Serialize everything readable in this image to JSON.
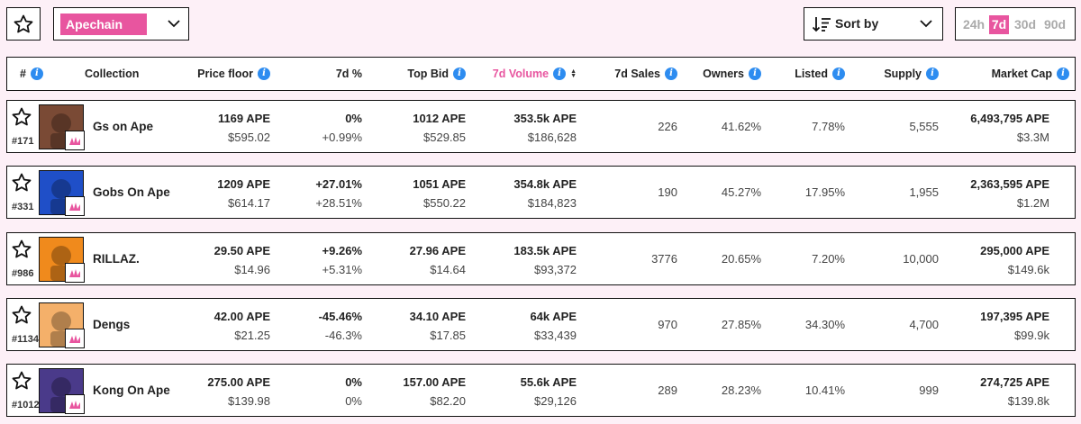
{
  "toolbar": {
    "chain": "Apechain",
    "sort_label": "Sort by",
    "periods": [
      "24h",
      "7d",
      "30d",
      "90d"
    ],
    "active_period": "7d"
  },
  "header": {
    "rank": "#",
    "collection": "Collection",
    "price_floor": "Price floor",
    "change": "7d %",
    "top_bid": "Top Bid",
    "volume": "7d Volume",
    "sales": "7d Sales",
    "owners": "Owners",
    "listed": "Listed",
    "supply": "Supply",
    "market_cap": "Market Cap"
  },
  "rows": [
    {
      "rank": "#171",
      "name": "Gs on Ape",
      "floor": "1169  APE",
      "floor_usd": "$595.02",
      "change_top": "0%",
      "change_top_class": "zero",
      "change_bot": "+0.99%",
      "change_bot_class": "pos",
      "bid": "1012  APE",
      "bid_usd": "$529.85",
      "volume": "353.5k  APE",
      "volume_usd": "$186,628",
      "sales": "226",
      "owners": "41.62%",
      "listed": "7.78%",
      "supply": "5,555",
      "mcap": "6,493,795  APE",
      "mcap_usd": "$3.3M",
      "thumb_bg": "#7a4a35"
    },
    {
      "rank": "#331",
      "name": "Gobs On Ape",
      "floor": "1209  APE",
      "floor_usd": "$614.17",
      "change_top": "+27.01%",
      "change_top_class": "pos",
      "change_bot": "+28.51%",
      "change_bot_class": "pos",
      "bid": "1051  APE",
      "bid_usd": "$550.22",
      "volume": "354.8k  APE",
      "volume_usd": "$184,823",
      "sales": "190",
      "owners": "45.27%",
      "listed": "17.95%",
      "supply": "1,955",
      "mcap": "2,363,595  APE",
      "mcap_usd": "$1.2M",
      "thumb_bg": "#1f4fc8"
    },
    {
      "rank": "#986",
      "name": "RILLAZ.",
      "floor": "29.50  APE",
      "floor_usd": "$14.96",
      "change_top": "+9.26%",
      "change_top_class": "pos",
      "change_bot": "+5.31%",
      "change_bot_class": "pos",
      "bid": "27.96  APE",
      "bid_usd": "$14.64",
      "volume": "183.5k  APE",
      "volume_usd": "$93,372",
      "sales": "3776",
      "owners": "20.65%",
      "listed": "7.20%",
      "supply": "10,000",
      "mcap": "295,000  APE",
      "mcap_usd": "$149.6k",
      "thumb_bg": "#f08a1c"
    },
    {
      "rank": "#1134",
      "name": "Dengs",
      "floor": "42.00  APE",
      "floor_usd": "$21.25",
      "change_top": "-45.46%",
      "change_top_class": "neg",
      "change_bot": "-46.3%",
      "change_bot_class": "neg",
      "bid": "34.10  APE",
      "bid_usd": "$17.85",
      "volume": "64k  APE",
      "volume_usd": "$33,439",
      "sales": "970",
      "owners": "27.85%",
      "listed": "34.30%",
      "supply": "4,700",
      "mcap": "197,395  APE",
      "mcap_usd": "$99.9k",
      "thumb_bg": "#f4b06a"
    },
    {
      "rank": "#1012",
      "name": "Kong On Ape",
      "floor": "275.00  APE",
      "floor_usd": "$139.98",
      "change_top": "0%",
      "change_top_class": "zero",
      "change_bot": "0%",
      "change_bot_class": "zero",
      "bid": "157.00  APE",
      "bid_usd": "$82.20",
      "volume": "55.6k  APE",
      "volume_usd": "$29,126",
      "sales": "289",
      "owners": "28.23%",
      "listed": "10.41%",
      "supply": "999",
      "mcap": "274,725  APE",
      "mcap_usd": "$139.8k",
      "thumb_bg": "#4a3a8a"
    }
  ],
  "colors": {
    "accent": "#e8559f",
    "info": "#2d8cf0",
    "positive": "#3aa336",
    "negative": "#e02a2a"
  },
  "icons": {
    "favorite": "star-outline-icon",
    "chain_chevron": "chevron-down-icon",
    "sort": "sort-lines-icon",
    "info": "info-circle-icon",
    "chain_badge": "ape-logo-icon"
  }
}
